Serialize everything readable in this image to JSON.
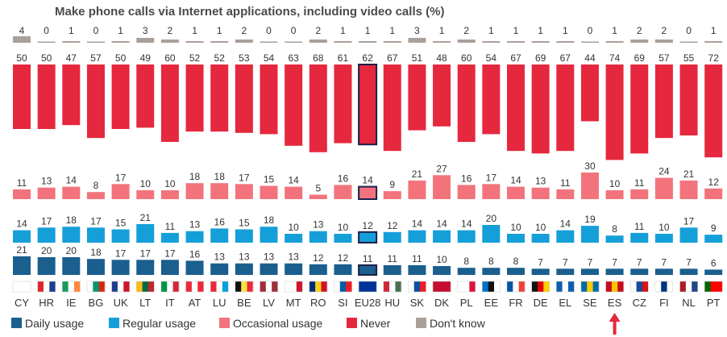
{
  "chart_data": {
    "type": "bar",
    "title": "Make phone calls via Internet applications, including video calls (%)",
    "categories": [
      "CY",
      "HR",
      "IE",
      "BG",
      "UK",
      "LT",
      "IT",
      "AT",
      "LU",
      "BE",
      "LV",
      "MT",
      "RO",
      "SI",
      "EU28",
      "HU",
      "SK",
      "DK",
      "PL",
      "EE",
      "FR",
      "DE",
      "EL",
      "SE",
      "ES",
      "CZ",
      "FI",
      "NL",
      "PT"
    ],
    "highlight_category": "EU28",
    "arrow_category": "ES",
    "series": [
      {
        "name": "Daily usage",
        "color": "#1a5f8e",
        "values": [
          21,
          20,
          20,
          18,
          17,
          17,
          17,
          16,
          13,
          13,
          13,
          13,
          12,
          12,
          11,
          11,
          11,
          10,
          8,
          8,
          8,
          7,
          7,
          7,
          7,
          7,
          7,
          7,
          6
        ]
      },
      {
        "name": "Regular usage",
        "color": "#159fd9",
        "values": [
          14,
          17,
          18,
          17,
          15,
          21,
          11,
          13,
          16,
          15,
          18,
          10,
          13,
          10,
          12,
          12,
          14,
          14,
          14,
          20,
          10,
          10,
          14,
          19,
          8,
          11,
          10,
          17,
          9
        ]
      },
      {
        "name": "Occasional usage",
        "color": "#f2737c",
        "values": [
          11,
          13,
          14,
          8,
          17,
          10,
          10,
          18,
          18,
          17,
          15,
          14,
          5,
          16,
          14,
          9,
          21,
          27,
          16,
          17,
          14,
          13,
          11,
          30,
          10,
          11,
          24,
          21,
          12
        ]
      },
      {
        "name": "Never",
        "color": "#e5283e",
        "values": [
          50,
          50,
          47,
          57,
          50,
          49,
          60,
          52,
          52,
          53,
          54,
          63,
          68,
          61,
          62,
          67,
          51,
          48,
          60,
          54,
          67,
          69,
          67,
          44,
          74,
          69,
          57,
          55,
          72
        ]
      },
      {
        "name": "Don't know",
        "color": "#ab9f9a",
        "values": [
          4,
          0,
          1,
          0,
          1,
          3,
          2,
          1,
          1,
          2,
          0,
          0,
          2,
          1,
          1,
          1,
          3,
          1,
          2,
          1,
          1,
          1,
          1,
          0,
          1,
          2,
          2,
          0,
          1
        ]
      }
    ],
    "flags": {
      "CY": [
        "#ffffff",
        "#ffffff",
        "#ffffff"
      ],
      "HR": [
        "#e0262b",
        "#ffffff",
        "#1e3d8f"
      ],
      "IE": [
        "#169b62",
        "#ffffff",
        "#ff883e"
      ],
      "BG": [
        "#ffffff",
        "#00966e",
        "#d62612"
      ],
      "UK": [
        "#1e3d8f",
        "#ffffff",
        "#cf142b"
      ],
      "LT": [
        "#fdb913",
        "#006a44",
        "#c1272d"
      ],
      "IT": [
        "#009246",
        "#ffffff",
        "#ce2b37"
      ],
      "AT": [
        "#ed2939",
        "#ffffff",
        "#ed2939"
      ],
      "LU": [
        "#ed2939",
        "#ffffff",
        "#00a1de"
      ],
      "BE": [
        "#111111",
        "#fae042",
        "#ed2939"
      ],
      "LV": [
        "#9e3039",
        "#ffffff",
        "#9e3039"
      ],
      "MT": [
        "#ffffff",
        "#ffffff",
        "#cf142b"
      ],
      "RO": [
        "#002b7f",
        "#fcd116",
        "#ce1126"
      ],
      "SI": [
        "#ffffff",
        "#005da4",
        "#ed1c24"
      ],
      "EU28": [
        "#003399",
        "#003399",
        "#003399"
      ],
      "HU": [
        "#ce2939",
        "#ffffff",
        "#477050"
      ],
      "SK": [
        "#ffffff",
        "#0b4ea2",
        "#ee1c25"
      ],
      "DK": [
        "#c60c30",
        "#c60c30",
        "#c60c30"
      ],
      "PL": [
        "#ffffff",
        "#ffffff",
        "#dc143c"
      ],
      "EE": [
        "#0072ce",
        "#111111",
        "#ffffff"
      ],
      "FR": [
        "#0055a4",
        "#ffffff",
        "#ef4135"
      ],
      "DE": [
        "#111111",
        "#dd0000",
        "#ffce00"
      ],
      "EL": [
        "#0d5eaf",
        "#ffffff",
        "#0d5eaf"
      ],
      "SE": [
        "#006aa7",
        "#fecc00",
        "#006aa7"
      ],
      "ES": [
        "#c60b1e",
        "#ffc400",
        "#c60b1e"
      ],
      "CZ": [
        "#ffffff",
        "#1a4a9c",
        "#d7141a"
      ],
      "FI": [
        "#ffffff",
        "#003580",
        "#ffffff"
      ],
      "NL": [
        "#ae1c28",
        "#ffffff",
        "#21468b"
      ],
      "PT": [
        "#006600",
        "#ff0000",
        "#ff0000"
      ]
    },
    "arrow_color": "#e5283e",
    "legend_placement": "bottom",
    "grid": false
  }
}
